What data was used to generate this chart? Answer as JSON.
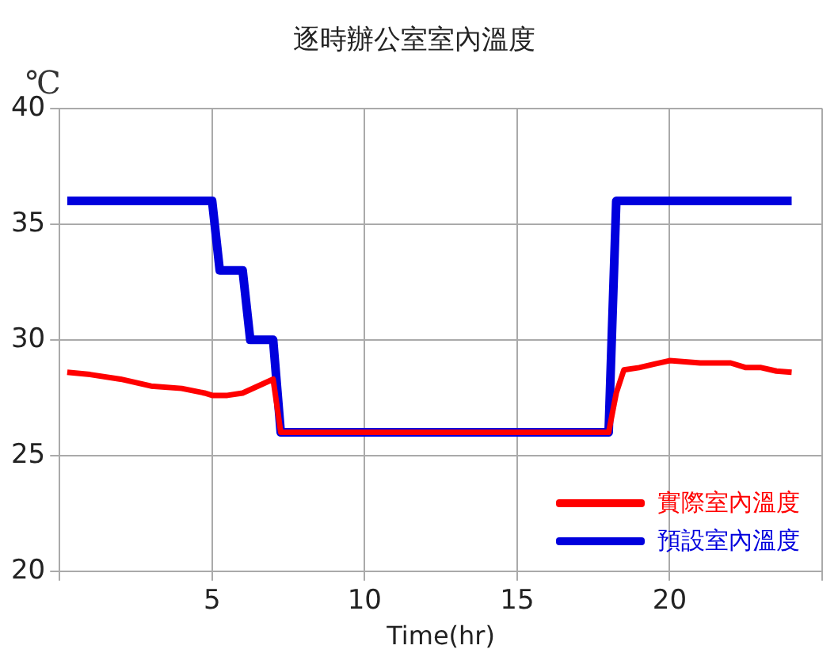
{
  "chart_data": {
    "type": "line",
    "title": "逐時辦公室室內溫度",
    "xlabel": "Time(hr)",
    "ylabel": "℃",
    "xlim": [
      0,
      25
    ],
    "xticks": [
      {
        "value": 0,
        "label": null
      },
      5,
      10,
      15,
      20,
      {
        "value": 25,
        "label": null
      }
    ],
    "ylim": [
      20,
      40
    ],
    "yticks": [
      20,
      25,
      30,
      35,
      40
    ],
    "grid": true,
    "legend": "bottom right",
    "marker": "none",
    "line_style": "solid",
    "series": [
      {
        "name": "實際室內溫度",
        "color": "#ff0000",
        "x": [
          0.25,
          1,
          2,
          3,
          4,
          4.75,
          5,
          5.5,
          6,
          6.5,
          7,
          7.25,
          18,
          18.25,
          18.5,
          19,
          19.5,
          20,
          21,
          22,
          22.5,
          23,
          23.5,
          24
        ],
        "values": [
          28.6,
          28.5,
          28.3,
          28.0,
          27.9,
          27.7,
          27.6,
          27.6,
          27.7,
          28.0,
          28.3,
          26,
          26,
          27.7,
          28.7,
          28.8,
          28.95,
          29.1,
          29.0,
          29.0,
          28.8,
          28.8,
          28.65,
          28.6
        ]
      },
      {
        "name": "預設室內溫度",
        "color": "#0000dd",
        "x": [
          0.25,
          5,
          5.25,
          6,
          6.25,
          7,
          7.25,
          18,
          18.25,
          24
        ],
        "values": [
          36,
          36,
          33,
          33,
          30,
          30,
          26,
          26,
          36,
          36
        ]
      }
    ]
  }
}
